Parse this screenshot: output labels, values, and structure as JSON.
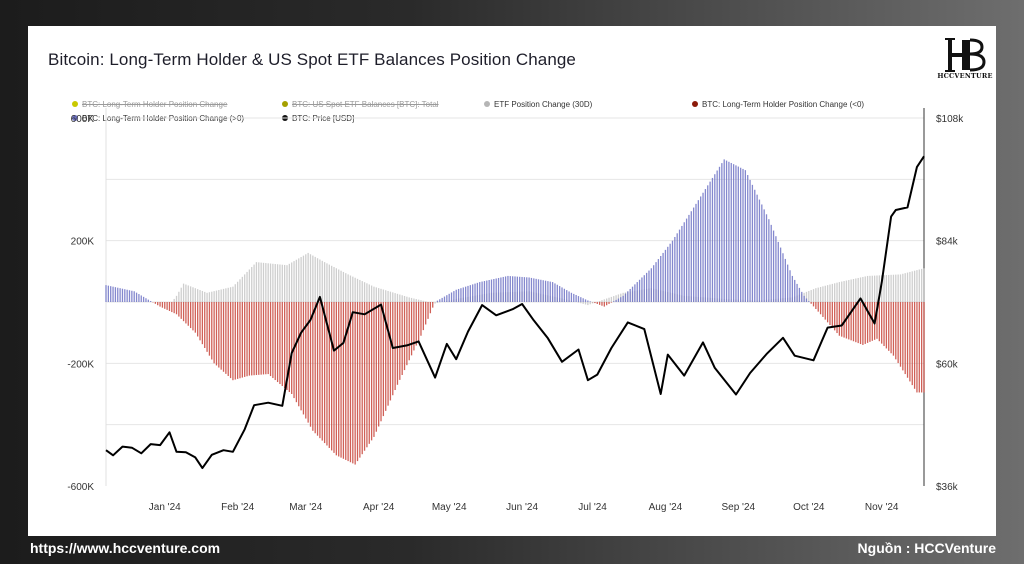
{
  "title": "Bitcoin: Long-Term Holder & US Spot ETF Balances Position Change",
  "logo": {
    "name": "HCCVENTURE",
    "letters": "HB"
  },
  "legend": [
    {
      "label": "BTC: Long-Term Holder Position Change",
      "color": "#c9c900",
      "disabled": true
    },
    {
      "label": "BTC: US Spot ETF Balances [BTC]: Total",
      "color": "#a5a000",
      "disabled": true
    },
    {
      "label": "ETF Position Change (30D)",
      "color": "#b5b5b5",
      "disabled": false
    },
    {
      "label": "BTC: Long-Term Holder Position Change (<0)",
      "color": "#8b1a0a",
      "disabled": false
    },
    {
      "label": "BTC: Long-Term Holder Position Change (>0)",
      "color": "#6f73c6",
      "disabled": false
    },
    {
      "label": "BTC: Price [USD]",
      "color": "#111111",
      "disabled": false
    }
  ],
  "footer": {
    "left": "https://www.hccventure.com",
    "right": "Nguồn : HCCVenture"
  },
  "chart_data": {
    "type": "bar",
    "x_range": [
      "2023-12-13",
      "2024-11-25"
    ],
    "x_ticks": [
      "Jan '24",
      "Feb '24",
      "Mar '24",
      "Apr '24",
      "May '24",
      "Jun '24",
      "Jul '24",
      "Aug '24",
      "Sep '24",
      "Oct '24",
      "Nov '24"
    ],
    "y_left": {
      "ticks": [
        "600K",
        "200K",
        "-200K",
        "-600K"
      ],
      "tick_values": [
        600000,
        200000,
        -200000,
        -600000
      ],
      "range": [
        -600000,
        600000
      ],
      "gridlines": [
        600000,
        400000,
        200000,
        0,
        -200000,
        -400000
      ]
    },
    "y_right": {
      "ticks": [
        "$108k",
        "$84k",
        "$60k",
        "$36k"
      ],
      "tick_values": [
        108000,
        84000,
        60000,
        36000
      ],
      "range": [
        36000,
        108000
      ]
    },
    "grid": true,
    "colors": {
      "lth_pos": "#6f73c6",
      "lth_neg": "#c8443a",
      "etf": "#bdbdbd",
      "price": "#000000"
    },
    "lth_position_change": [
      [
        "2023-12-13",
        55000
      ],
      [
        "2023-12-25",
        35000
      ],
      [
        "2024-01-05",
        -15000
      ],
      [
        "2024-01-12",
        -40000
      ],
      [
        "2024-01-20",
        -100000
      ],
      [
        "2024-01-28",
        -200000
      ],
      [
        "2024-02-05",
        -255000
      ],
      [
        "2024-02-12",
        -240000
      ],
      [
        "2024-02-20",
        -235000
      ],
      [
        "2024-03-01",
        -300000
      ],
      [
        "2024-03-10",
        -420000
      ],
      [
        "2024-03-20",
        -500000
      ],
      [
        "2024-03-28",
        -530000
      ],
      [
        "2024-04-05",
        -440000
      ],
      [
        "2024-04-15",
        -270000
      ],
      [
        "2024-04-25",
        -110000
      ],
      [
        "2024-05-01",
        0
      ],
      [
        "2024-05-10",
        40000
      ],
      [
        "2024-05-20",
        65000
      ],
      [
        "2024-06-01",
        85000
      ],
      [
        "2024-06-10",
        80000
      ],
      [
        "2024-06-20",
        65000
      ],
      [
        "2024-06-28",
        30000
      ],
      [
        "2024-07-05",
        5000
      ],
      [
        "2024-07-12",
        -15000
      ],
      [
        "2024-07-20",
        20000
      ],
      [
        "2024-08-01",
        110000
      ],
      [
        "2024-08-10",
        200000
      ],
      [
        "2024-08-20",
        320000
      ],
      [
        "2024-09-01",
        465000
      ],
      [
        "2024-09-10",
        430000
      ],
      [
        "2024-09-20",
        270000
      ],
      [
        "2024-09-30",
        85000
      ],
      [
        "2024-10-05",
        20000
      ],
      [
        "2024-10-12",
        -40000
      ],
      [
        "2024-10-20",
        -110000
      ],
      [
        "2024-10-30",
        -140000
      ],
      [
        "2024-11-05",
        -120000
      ],
      [
        "2024-11-12",
        -175000
      ],
      [
        "2024-11-22",
        -295000
      ]
    ],
    "etf_position_change_30d": [
      [
        "2023-12-13",
        0
      ],
      [
        "2024-01-10",
        0
      ],
      [
        "2024-01-12",
        20000
      ],
      [
        "2024-01-15",
        60000
      ],
      [
        "2024-01-25",
        30000
      ],
      [
        "2024-02-05",
        50000
      ],
      [
        "2024-02-15",
        130000
      ],
      [
        "2024-02-28",
        120000
      ],
      [
        "2024-03-08",
        160000
      ],
      [
        "2024-03-15",
        130000
      ],
      [
        "2024-03-25",
        90000
      ],
      [
        "2024-04-05",
        50000
      ],
      [
        "2024-04-20",
        15000
      ],
      [
        "2024-05-01",
        -5000
      ],
      [
        "2024-05-10",
        10000
      ],
      [
        "2024-05-25",
        30000
      ],
      [
        "2024-06-10",
        35000
      ],
      [
        "2024-06-25",
        10000
      ],
      [
        "2024-07-05",
        -10000
      ],
      [
        "2024-07-20",
        30000
      ],
      [
        "2024-08-01",
        45000
      ],
      [
        "2024-08-15",
        20000
      ],
      [
        "2024-09-01",
        10000
      ],
      [
        "2024-09-15",
        5000
      ],
      [
        "2024-09-30",
        15000
      ],
      [
        "2024-10-10",
        45000
      ],
      [
        "2024-10-20",
        65000
      ],
      [
        "2024-11-01",
        85000
      ],
      [
        "2024-11-15",
        90000
      ],
      [
        "2024-11-25",
        110000
      ]
    ],
    "price_usd": [
      [
        "2023-12-13",
        43000
      ],
      [
        "2023-12-16",
        42000
      ],
      [
        "2023-12-20",
        43700
      ],
      [
        "2023-12-24",
        43500
      ],
      [
        "2023-12-28",
        42400
      ],
      [
        "2024-01-01",
        44200
      ],
      [
        "2024-01-05",
        44000
      ],
      [
        "2024-01-09",
        46500
      ],
      [
        "2024-01-12",
        42700
      ],
      [
        "2024-01-16",
        42600
      ],
      [
        "2024-01-20",
        41600
      ],
      [
        "2024-01-23",
        39500
      ],
      [
        "2024-01-27",
        42100
      ],
      [
        "2024-02-01",
        43000
      ],
      [
        "2024-02-05",
        42700
      ],
      [
        "2024-02-10",
        47100
      ],
      [
        "2024-02-14",
        51800
      ],
      [
        "2024-02-20",
        52300
      ],
      [
        "2024-02-26",
        51700
      ],
      [
        "2024-03-01",
        62000
      ],
      [
        "2024-03-05",
        66000
      ],
      [
        "2024-03-09",
        68500
      ],
      [
        "2024-03-13",
        73000
      ],
      [
        "2024-03-19",
        62500
      ],
      [
        "2024-03-23",
        64000
      ],
      [
        "2024-03-27",
        70000
      ],
      [
        "2024-04-01",
        69600
      ],
      [
        "2024-04-08",
        71500
      ],
      [
        "2024-04-13",
        63000
      ],
      [
        "2024-04-19",
        63500
      ],
      [
        "2024-04-24",
        64300
      ],
      [
        "2024-05-01",
        57200
      ],
      [
        "2024-05-06",
        63800
      ],
      [
        "2024-05-10",
        60800
      ],
      [
        "2024-05-15",
        66200
      ],
      [
        "2024-05-21",
        71400
      ],
      [
        "2024-05-27",
        69400
      ],
      [
        "2024-06-03",
        70600
      ],
      [
        "2024-06-07",
        71600
      ],
      [
        "2024-06-12",
        68400
      ],
      [
        "2024-06-18",
        64900
      ],
      [
        "2024-06-24",
        60300
      ],
      [
        "2024-07-01",
        62700
      ],
      [
        "2024-07-05",
        56700
      ],
      [
        "2024-07-09",
        57800
      ],
      [
        "2024-07-15",
        63000
      ],
      [
        "2024-07-22",
        68000
      ],
      [
        "2024-07-29",
        66700
      ],
      [
        "2024-08-05",
        54000
      ],
      [
        "2024-08-08",
        61700
      ],
      [
        "2024-08-15",
        57600
      ],
      [
        "2024-08-23",
        64100
      ],
      [
        "2024-08-28",
        59100
      ],
      [
        "2024-09-06",
        53900
      ],
      [
        "2024-09-12",
        58100
      ],
      [
        "2024-09-19",
        61800
      ],
      [
        "2024-09-26",
        65000
      ],
      [
        "2024-10-01",
        61500
      ],
      [
        "2024-10-09",
        60600
      ],
      [
        "2024-10-15",
        67000
      ],
      [
        "2024-10-21",
        67400
      ],
      [
        "2024-10-29",
        72700
      ],
      [
        "2024-11-04",
        67800
      ],
      [
        "2024-11-07",
        75800
      ],
      [
        "2024-11-11",
        88700
      ],
      [
        "2024-11-13",
        90000
      ],
      [
        "2024-11-18",
        90500
      ],
      [
        "2024-11-22",
        98400
      ],
      [
        "2024-11-25",
        100500
      ]
    ]
  }
}
